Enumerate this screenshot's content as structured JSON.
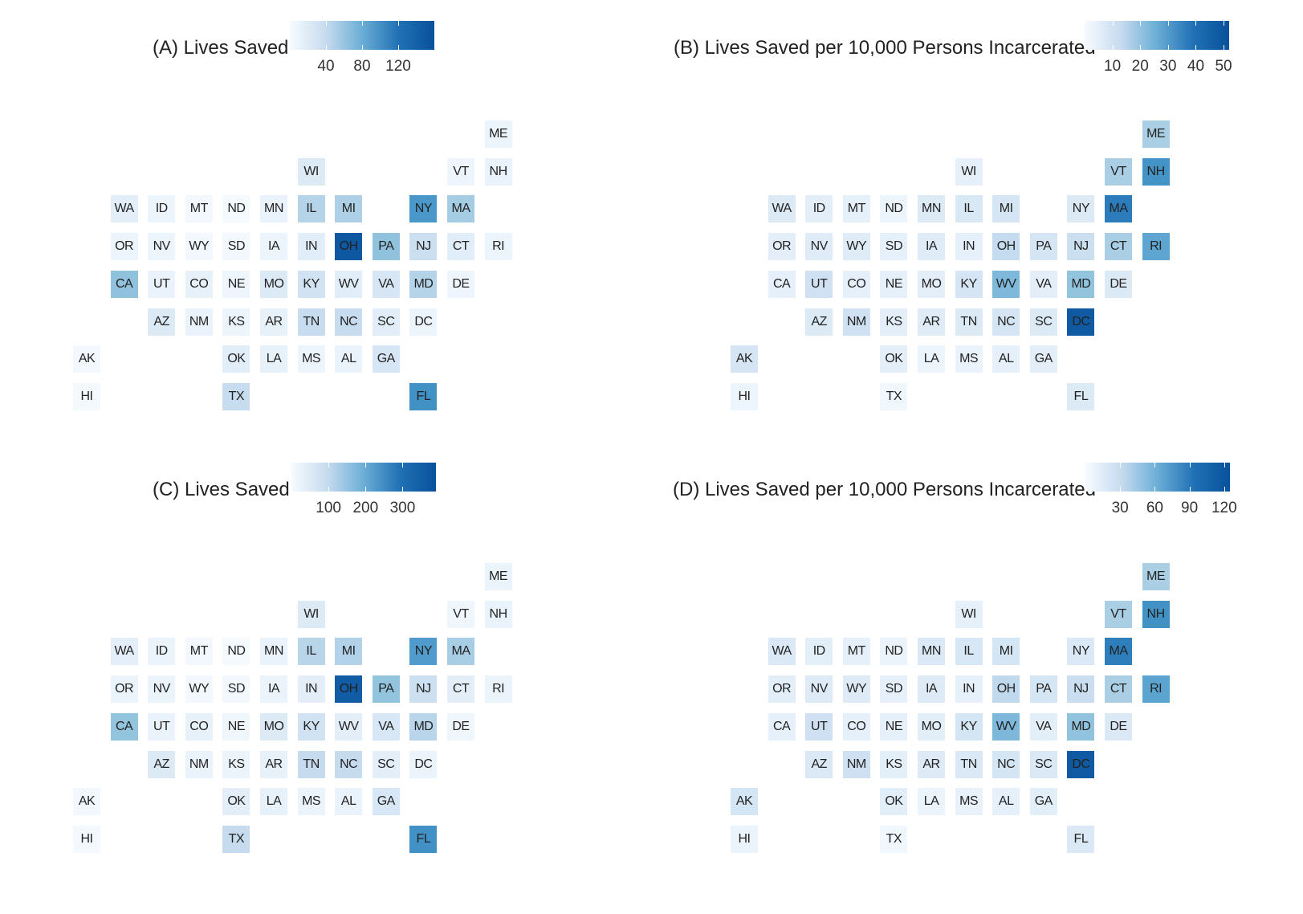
{
  "states": [
    "AK",
    "HI",
    "WA",
    "OR",
    "CA",
    "ID",
    "NV",
    "UT",
    "AZ",
    "MT",
    "WY",
    "CO",
    "NM",
    "ND",
    "SD",
    "NE",
    "KS",
    "OK",
    "TX",
    "MN",
    "IA",
    "MO",
    "AR",
    "LA",
    "WI",
    "IL",
    "IN",
    "KY",
    "TN",
    "MS",
    "MI",
    "OH",
    "WV",
    "NC",
    "AL",
    "PA",
    "VA",
    "SC",
    "GA",
    "NY",
    "NJ",
    "MD",
    "DC",
    "FL",
    "VT",
    "MA",
    "CT",
    "DE",
    "ME",
    "NH",
    "RI"
  ],
  "panels": [
    {
      "id": "A",
      "title": "(A) Lives Saved",
      "legend": {
        "min": 0,
        "max": 160,
        "ticks": [
          40,
          80,
          120
        ],
        "tick_labels": [
          "40",
          "80",
          "120"
        ]
      },
      "values": {
        "AK": 5,
        "HI": 3,
        "WA": 18,
        "OR": 10,
        "CA": 75,
        "ID": 10,
        "NV": 10,
        "UT": 12,
        "AZ": 25,
        "MT": 5,
        "WY": 5,
        "CO": 15,
        "NM": 12,
        "ND": 2,
        "SD": 5,
        "NE": 8,
        "KS": 10,
        "OK": 20,
        "TX": 45,
        "MN": 12,
        "IA": 10,
        "MO": 25,
        "AR": 15,
        "LA": 15,
        "WI": 25,
        "IL": 55,
        "IN": 20,
        "KY": 35,
        "TN": 45,
        "MS": 10,
        "MI": 60,
        "OH": 155,
        "WV": 20,
        "NC": 45,
        "AL": 12,
        "PA": 75,
        "VA": 30,
        "SC": 20,
        "GA": 30,
        "NY": 110,
        "NJ": 40,
        "MD": 55,
        "DC": 10,
        "FL": 115,
        "VT": 8,
        "MA": 65,
        "CT": 20,
        "DE": 8,
        "ME": 10,
        "NH": 12,
        "RI": 10
      }
    },
    {
      "id": "B",
      "title": "(B) Lives Saved per 10,000 Persons Incarcerated",
      "legend": {
        "min": 0,
        "max": 52,
        "ticks": [
          10,
          20,
          30,
          40,
          50
        ],
        "tick_labels": [
          "10",
          "20",
          "30",
          "40",
          "50"
        ]
      },
      "values": {
        "AK": 10,
        "HI": 3,
        "WA": 8,
        "OR": 6,
        "CA": 5,
        "ID": 6,
        "NV": 7,
        "UT": 12,
        "AZ": 8,
        "MT": 5,
        "WY": 7,
        "CO": 5,
        "NM": 12,
        "ND": 3,
        "SD": 5,
        "NE": 5,
        "KS": 6,
        "OK": 6,
        "TX": 2,
        "MN": 8,
        "IA": 7,
        "MO": 6,
        "AR": 7,
        "LA": 3,
        "WI": 5,
        "IL": 9,
        "IN": 5,
        "KY": 10,
        "TN": 8,
        "MS": 4,
        "MI": 10,
        "OH": 15,
        "WV": 27,
        "NC": 10,
        "AL": 5,
        "PA": 10,
        "VA": 6,
        "SC": 8,
        "GA": 6,
        "NY": 8,
        "NJ": 13,
        "MD": 24,
        "DC": 50,
        "FL": 8,
        "VT": 20,
        "MA": 42,
        "CT": 20,
        "DE": 8,
        "ME": 20,
        "NH": 37,
        "RI": 32
      }
    },
    {
      "id": "C",
      "title": "(C) Lives Saved",
      "legend": {
        "min": 0,
        "max": 390,
        "ticks": [
          100,
          200,
          300
        ],
        "tick_labels": [
          "100",
          "200",
          "300"
        ]
      },
      "values": {
        "AK": 12,
        "HI": 8,
        "WA": 45,
        "OR": 25,
        "CA": 180,
        "ID": 25,
        "NV": 25,
        "UT": 30,
        "AZ": 60,
        "MT": 12,
        "WY": 12,
        "CO": 35,
        "NM": 30,
        "ND": 5,
        "SD": 12,
        "NE": 18,
        "KS": 25,
        "OK": 45,
        "TX": 110,
        "MN": 30,
        "IA": 25,
        "MO": 60,
        "AR": 35,
        "LA": 35,
        "WI": 60,
        "IL": 130,
        "IN": 45,
        "KY": 85,
        "TN": 110,
        "MS": 25,
        "MI": 140,
        "OH": 370,
        "WV": 45,
        "NC": 110,
        "AL": 30,
        "PA": 180,
        "VA": 70,
        "SC": 45,
        "GA": 70,
        "NY": 260,
        "NJ": 95,
        "MD": 130,
        "DC": 25,
        "FL": 280,
        "VT": 18,
        "MA": 155,
        "CT": 45,
        "DE": 18,
        "ME": 25,
        "NH": 30,
        "RI": 25
      }
    },
    {
      "id": "D",
      "title": "(D) Lives Saved per 10,000 Persons Incarcerated",
      "legend": {
        "min": 0,
        "max": 125,
        "ticks": [
          30,
          60,
          90,
          120
        ],
        "tick_labels": [
          "30",
          "60",
          "90",
          "120"
        ]
      },
      "values": {
        "AK": 25,
        "HI": 8,
        "WA": 20,
        "OR": 15,
        "CA": 12,
        "ID": 15,
        "NV": 18,
        "UT": 30,
        "AZ": 20,
        "MT": 12,
        "WY": 18,
        "CO": 12,
        "NM": 30,
        "ND": 8,
        "SD": 12,
        "NE": 12,
        "KS": 15,
        "OK": 15,
        "TX": 5,
        "MN": 20,
        "IA": 18,
        "MO": 15,
        "AR": 18,
        "LA": 8,
        "WI": 12,
        "IL": 22,
        "IN": 12,
        "KY": 25,
        "TN": 20,
        "MS": 10,
        "MI": 25,
        "OH": 38,
        "WV": 65,
        "NC": 25,
        "AL": 12,
        "PA": 25,
        "VA": 15,
        "SC": 20,
        "GA": 15,
        "NY": 20,
        "NJ": 32,
        "MD": 58,
        "DC": 120,
        "FL": 20,
        "VT": 48,
        "MA": 100,
        "CT": 48,
        "DE": 20,
        "ME": 48,
        "NH": 90,
        "RI": 78
      }
    }
  ]
}
